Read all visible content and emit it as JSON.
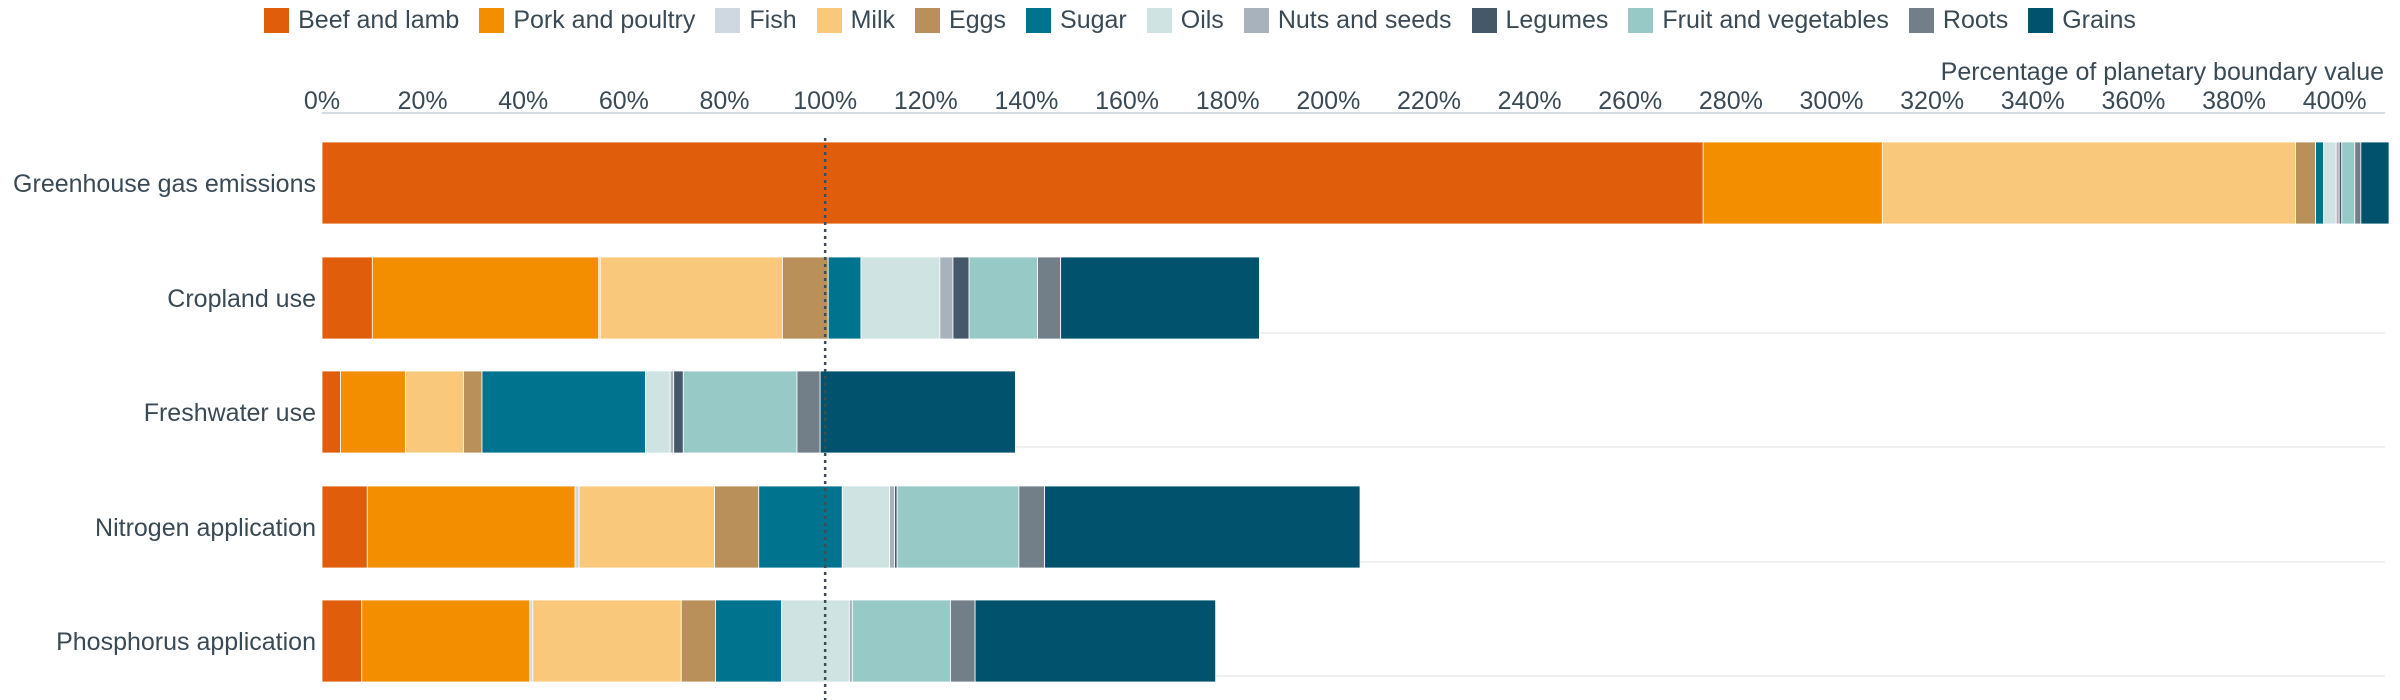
{
  "chart_data": {
    "type": "bar",
    "orientation": "horizontal",
    "stacked": true,
    "xlabel": "Percentage of planetary boundary value",
    "xlim": [
      0,
      410
    ],
    "x_ticks": [
      0,
      20,
      40,
      60,
      80,
      100,
      120,
      140,
      160,
      180,
      200,
      220,
      240,
      260,
      280,
      300,
      320,
      340,
      360,
      380,
      400
    ],
    "x_tick_labels": [
      "0%",
      "20%",
      "40%",
      "60%",
      "80%",
      "100%",
      "120%",
      "140%",
      "160%",
      "180%",
      "200%",
      "220%",
      "240%",
      "260%",
      "280%",
      "300%",
      "320%",
      "340%",
      "360%",
      "380%",
      "400%"
    ],
    "reference_line": 100,
    "grid": true,
    "legend_position": "top",
    "categories": [
      "Greenhouse gas emissions",
      "Cropland use",
      "Freshwater use",
      "Nitrogen application",
      "Phosphorus application"
    ],
    "series": [
      {
        "name": "Beef and lamb",
        "color": "#e05e0b",
        "values": [
          274.5,
          10.0,
          3.7,
          9.0,
          7.9
        ]
      },
      {
        "name": "Pork and poultry",
        "color": "#f28e00",
        "values": [
          35.6,
          45.0,
          12.9,
          41.3,
          33.4
        ]
      },
      {
        "name": "Fish",
        "color": "#cfd8e0",
        "values": [
          0.0,
          0.3,
          0.0,
          0.8,
          0.6
        ]
      },
      {
        "name": "Milk",
        "color": "#fac87a",
        "values": [
          82.1,
          36.2,
          11.5,
          26.9,
          29.5
        ]
      },
      {
        "name": "Eggs",
        "color": "#b98f5a",
        "values": [
          4.0,
          9.1,
          3.7,
          8.8,
          6.8
        ]
      },
      {
        "name": "Sugar",
        "color": "#00738f",
        "values": [
          1.6,
          6.5,
          32.5,
          16.6,
          13.1
        ]
      },
      {
        "name": "Oils",
        "color": "#cfe3e2",
        "values": [
          2.5,
          15.7,
          4.9,
          9.4,
          13.5
        ]
      },
      {
        "name": "Nuts and seeds",
        "color": "#a8b2bc",
        "values": [
          0.6,
          2.6,
          0.7,
          1.0,
          0.6
        ]
      },
      {
        "name": "Legumes",
        "color": "#44586a",
        "values": [
          0.5,
          3.2,
          1.9,
          0.5,
          0.0
        ]
      },
      {
        "name": "Fruit and vegetables",
        "color": "#97c9c6",
        "values": [
          2.6,
          13.6,
          22.6,
          24.2,
          19.5
        ]
      },
      {
        "name": "Roots",
        "color": "#727e88",
        "values": [
          1.2,
          4.6,
          4.6,
          5.1,
          4.9
        ]
      },
      {
        "name": "Grains",
        "color": "#00526d",
        "values": [
          5.6,
          39.5,
          38.8,
          62.7,
          47.8
        ]
      }
    ]
  }
}
